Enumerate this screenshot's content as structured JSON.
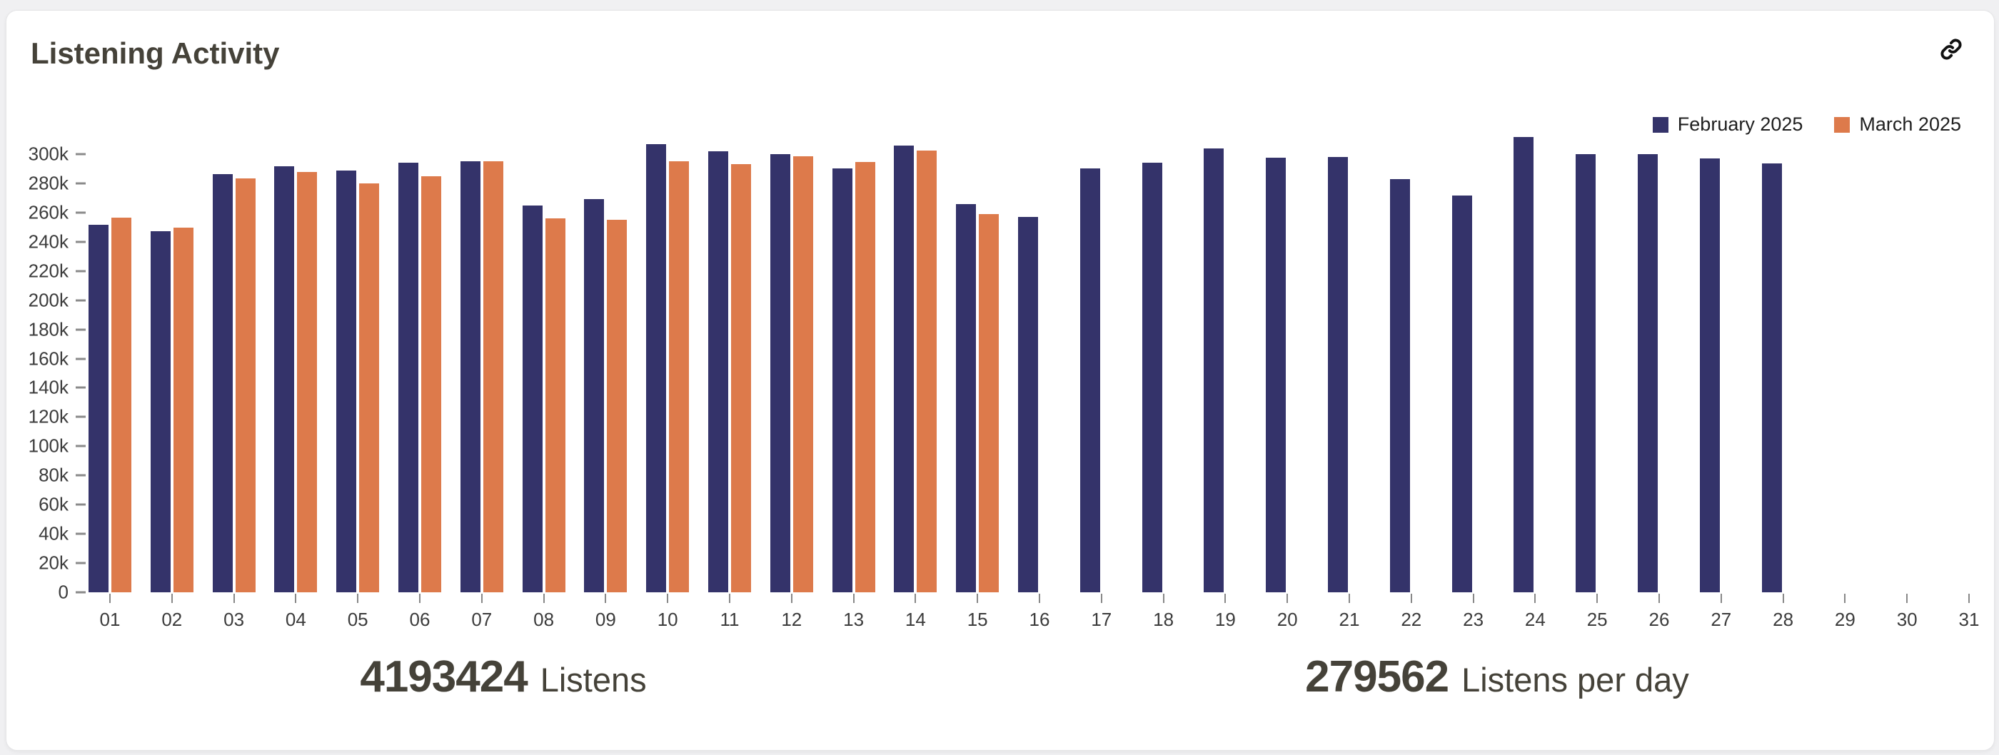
{
  "card": {
    "title": "Listening Activity"
  },
  "header": {
    "link_icon": "link-icon"
  },
  "stats": {
    "total_value": "4193424",
    "total_label": "Listens",
    "per_day_value": "279562",
    "per_day_label": "Listens per day"
  },
  "colors": {
    "february": "#34336a",
    "march": "#dd7a4b",
    "page_background": "#f0f0f2",
    "card_background": "#ffffff",
    "text_dark": "#454239",
    "axis_text": "#3c3c3c",
    "tick": "#8a8a8a"
  },
  "chart_data": {
    "type": "bar",
    "title": "Listening Activity",
    "grid": false,
    "legend_position": "top-right",
    "ylim": [
      0,
      300000
    ],
    "ytick_step": 20000,
    "ytick_labels": [
      "0",
      "20k",
      "40k",
      "60k",
      "80k",
      "100k",
      "120k",
      "140k",
      "160k",
      "180k",
      "200k",
      "220k",
      "240k",
      "260k",
      "280k",
      "300k"
    ],
    "categories": [
      "01",
      "02",
      "03",
      "04",
      "05",
      "06",
      "07",
      "08",
      "09",
      "10",
      "11",
      "12",
      "13",
      "14",
      "15",
      "16",
      "17",
      "18",
      "19",
      "20",
      "21",
      "22",
      "23",
      "24",
      "25",
      "26",
      "27",
      "28",
      "29",
      "30",
      "31"
    ],
    "series": [
      {
        "name": "February 2025",
        "color": "#34336a",
        "values": [
          251500,
          247000,
          286500,
          291500,
          289000,
          294000,
          295000,
          265000,
          269000,
          307000,
          302000,
          300000,
          290000,
          306000,
          266000,
          257000,
          290000,
          294000,
          304000,
          297500,
          298000,
          283000,
          271500,
          311500,
          300000,
          300000,
          297000,
          293500,
          null,
          null,
          null
        ]
      },
      {
        "name": "March 2025",
        "color": "#dd7a4b",
        "values": [
          256500,
          249500,
          283500,
          288000,
          280000,
          285000,
          295000,
          256000,
          255000,
          295000,
          293000,
          298500,
          294500,
          302500,
          259000,
          null,
          null,
          null,
          null,
          null,
          null,
          null,
          null,
          null,
          null,
          null,
          null,
          null,
          null,
          null,
          null
        ]
      }
    ]
  }
}
